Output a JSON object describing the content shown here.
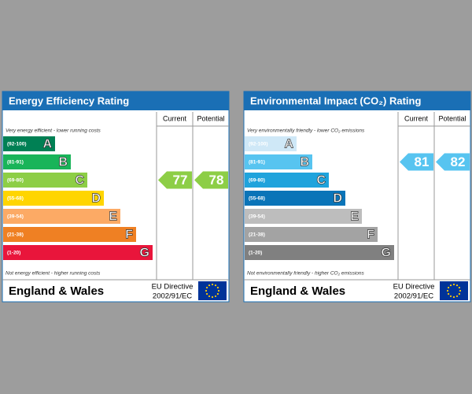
{
  "panels": [
    {
      "title": "Energy Efficiency Rating",
      "headers": [
        "Current",
        "Potential"
      ],
      "top_note": "Very energy efficient - lower running costs",
      "bottom_note": "Not energy efficient - higher running costs",
      "bands": [
        {
          "range": "(92-100)",
          "letter": "A",
          "color": "#008054"
        },
        {
          "range": "(81-91)",
          "letter": "B",
          "color": "#19b459"
        },
        {
          "range": "(69-80)",
          "letter": "C",
          "color": "#8dce46"
        },
        {
          "range": "(55-68)",
          "letter": "D",
          "color": "#ffd500"
        },
        {
          "range": "(39-54)",
          "letter": "E",
          "color": "#fcaa65"
        },
        {
          "range": "(21-38)",
          "letter": "F",
          "color": "#ef8023"
        },
        {
          "range": "(1-20)",
          "letter": "G",
          "color": "#e9153b"
        }
      ],
      "current": {
        "value": 77,
        "color": "#8dce46"
      },
      "potential": {
        "value": 78,
        "color": "#8dce46"
      },
      "region": "England & Wales",
      "directive": [
        "EU Directive",
        "2002/91/EC"
      ]
    },
    {
      "title": "Environmental Impact (CO₂) Rating",
      "headers": [
        "Current",
        "Potential"
      ],
      "top_note": "Very environmentally friendly - lower CO₂ emissions",
      "bottom_note": "Not environmentally friendly - higher CO₂ emissions",
      "bands": [
        {
          "range": "(92-100)",
          "letter": "A",
          "color": "#cfe8f7"
        },
        {
          "range": "(81-91)",
          "letter": "B",
          "color": "#57c4f0"
        },
        {
          "range": "(69-80)",
          "letter": "C",
          "color": "#1fa3dc"
        },
        {
          "range": "(55-68)",
          "letter": "D",
          "color": "#0a74b8"
        },
        {
          "range": "(39-54)",
          "letter": "E",
          "color": "#bdbdbd"
        },
        {
          "range": "(21-38)",
          "letter": "F",
          "color": "#a3a3a3"
        },
        {
          "range": "(1-20)",
          "letter": "G",
          "color": "#808080"
        }
      ],
      "current": {
        "value": 81,
        "color": "#57c4f0"
      },
      "potential": {
        "value": 82,
        "color": "#57c4f0"
      },
      "region": "England & Wales",
      "directive": [
        "EU Directive",
        "2002/91/EC"
      ]
    }
  ]
}
